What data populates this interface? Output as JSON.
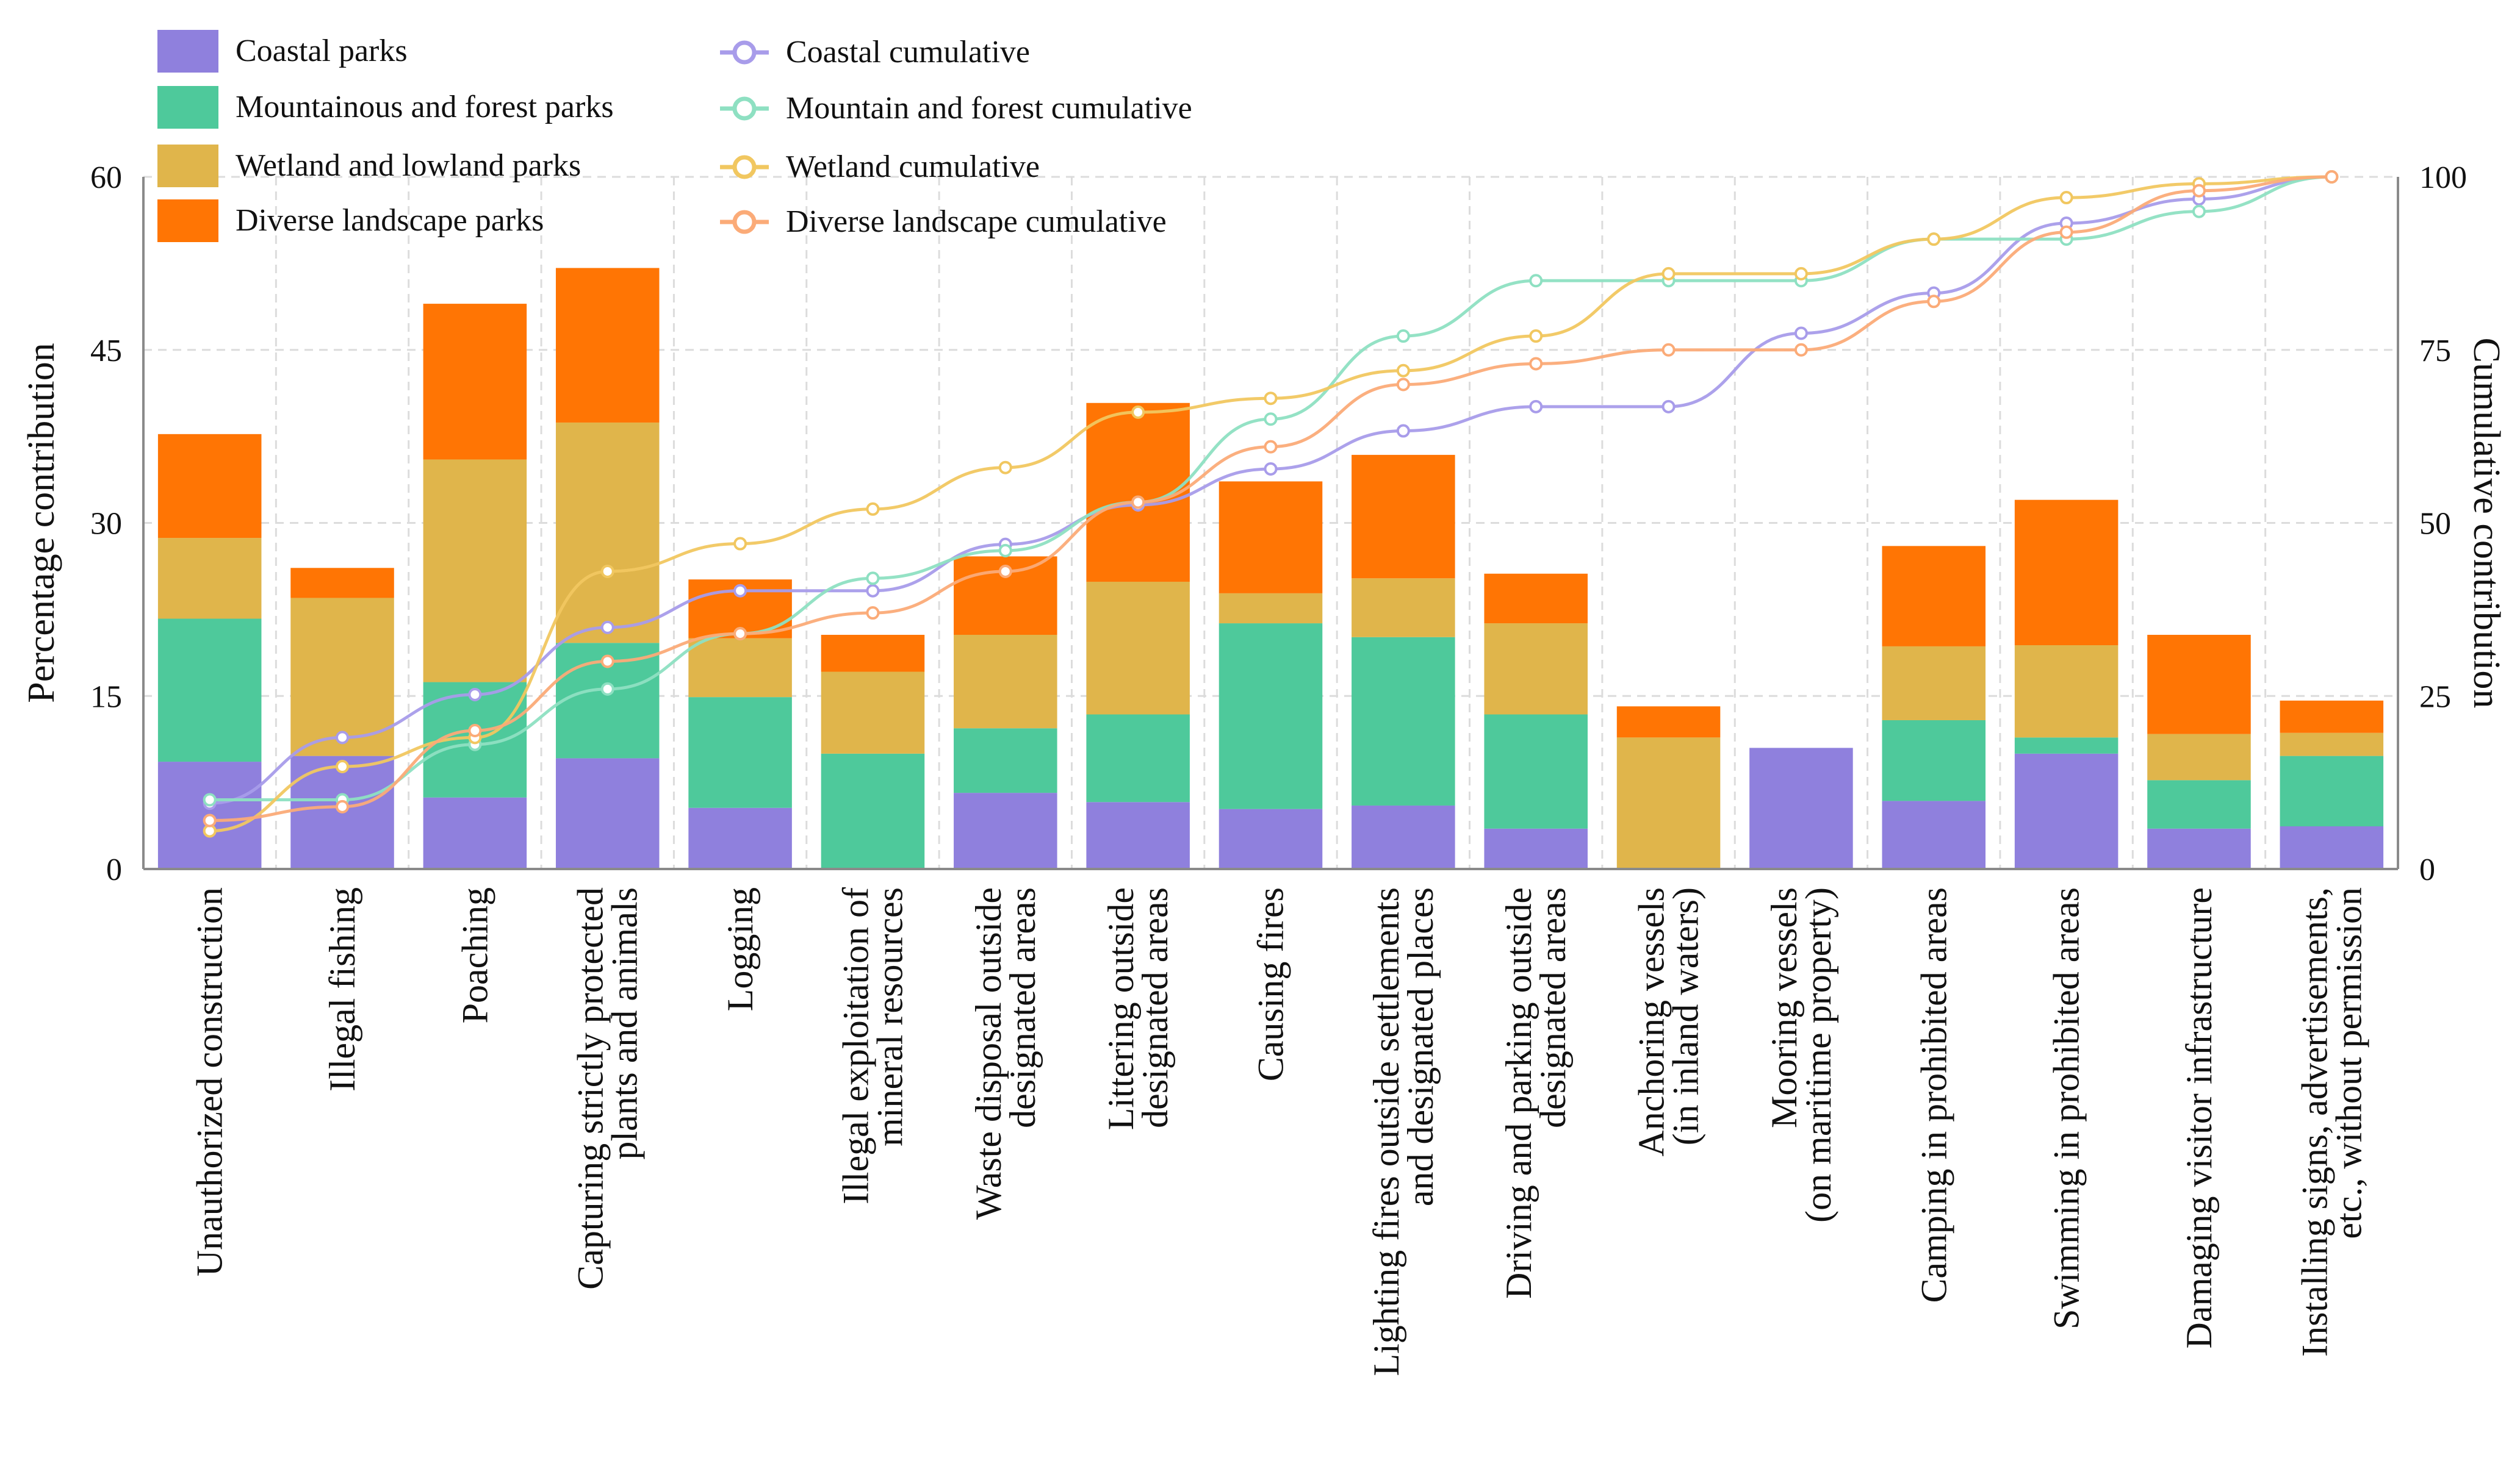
{
  "chart_data": {
    "type": "bar",
    "stacked": true,
    "xlabel": "",
    "ylabel": "Percentage contribution",
    "ylabel_right": "Cumulative contribution",
    "ylim": [
      0,
      60
    ],
    "ylim_right": [
      0,
      100
    ],
    "yticks": [
      0,
      15,
      30,
      45,
      60
    ],
    "yticks_right": [
      0,
      25,
      50,
      75,
      100
    ],
    "grid": true,
    "categories": [
      [
        "Unauthorized construction"
      ],
      [
        "Illegal fishing"
      ],
      [
        "Poaching"
      ],
      [
        "Capturing strictly protected",
        "plants and animals"
      ],
      [
        "Logging"
      ],
      [
        "Illegal exploitation of",
        "mineral resources"
      ],
      [
        "Waste disposal outside",
        "designated areas"
      ],
      [
        "Littering outside",
        "designated areas"
      ],
      [
        "Causing fires"
      ],
      [
        "Lighting fires outside settlements",
        "and designated places"
      ],
      [
        "Driving and parking outside",
        "designated areas"
      ],
      [
        "Anchoring vessels",
        "(in inland waters)"
      ],
      [
        "Mooring vessels",
        "(on maritime property)"
      ],
      [
        "Camping in prohibited areas"
      ],
      [
        "Swimming in prohibited areas"
      ],
      [
        "Damaging visitor infrastructure"
      ],
      [
        "Installing signs, advertisements,",
        "etc., without permission"
      ]
    ],
    "series": [
      {
        "name": "Coastal parks",
        "color": "#8f80dd",
        "values": [
          9.3,
          9.8,
          6.2,
          9.6,
          5.3,
          0,
          6.6,
          5.8,
          5.2,
          5.5,
          3.5,
          0,
          10.5,
          5.9,
          10.0,
          3.5,
          3.7
        ]
      },
      {
        "name": "Mountainous and forest parks",
        "color": "#4ec99b",
        "values": [
          12.4,
          0,
          10.0,
          10.0,
          9.6,
          10.0,
          5.6,
          7.6,
          16.1,
          14.6,
          9.9,
          0,
          0,
          7.0,
          1.4,
          4.2,
          6.1
        ]
      },
      {
        "name": "Wetland and lowland parks",
        "color": "#e0b54b",
        "values": [
          7.0,
          13.7,
          19.3,
          19.1,
          5.1,
          7.1,
          8.1,
          11.5,
          2.6,
          5.1,
          7.9,
          11.4,
          0,
          6.4,
          8.0,
          4.0,
          2.0
        ]
      },
      {
        "name": "Diverse landscape parks",
        "color": "#ff7504",
        "values": [
          9.0,
          2.6,
          13.5,
          13.4,
          5.1,
          3.2,
          6.8,
          15.5,
          9.7,
          10.7,
          4.3,
          2.7,
          0,
          8.7,
          12.6,
          8.6,
          2.8
        ]
      }
    ],
    "cumulative": [
      {
        "name": "Coastal cumulative",
        "color": "#a89cea",
        "values": [
          9.5,
          19.0,
          25.2,
          34.9,
          40.2,
          40.2,
          46.9,
          52.6,
          57.8,
          63.3,
          66.8,
          66.8,
          77.4,
          83.2,
          93.3,
          96.8,
          100
        ]
      },
      {
        "name": "Mountain and forest cumulative",
        "color": "#8ee0c2",
        "values": [
          10.0,
          10.0,
          18.0,
          26.0,
          34.0,
          42.0,
          46.0,
          53.0,
          65.0,
          77.0,
          85.0,
          85.0,
          85.0,
          91.0,
          91.0,
          95.0,
          100
        ]
      },
      {
        "name": "Wetland cumulative",
        "color": "#f1c760",
        "values": [
          5.5,
          14.8,
          19.0,
          43.0,
          47.0,
          52.0,
          58.0,
          66.0,
          68.0,
          72.0,
          77.0,
          86.0,
          86.0,
          91.0,
          97.0,
          99.0,
          100
        ]
      },
      {
        "name": "Diverse landscape cumulative",
        "color": "#fbab78",
        "values": [
          7.0,
          9.0,
          20.0,
          30.0,
          34.0,
          37.0,
          43.0,
          53.0,
          61.0,
          70.0,
          73.0,
          75.0,
          75.0,
          82.0,
          92.0,
          98.0,
          100
        ]
      }
    ]
  }
}
